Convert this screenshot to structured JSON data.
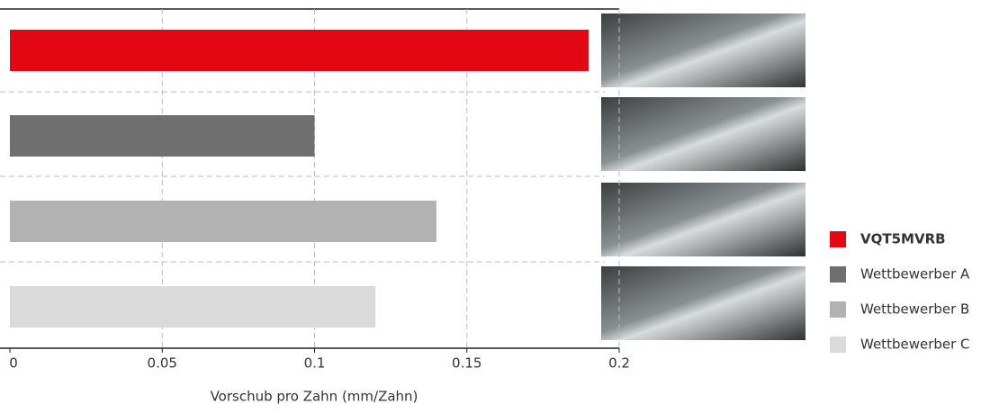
{
  "chart_data": {
    "type": "bar",
    "orientation": "horizontal",
    "x_label": "Vorschub pro Zahn (mm/Zahn)",
    "series": [
      {
        "name": "VQT5MVRB",
        "color": "#e30613",
        "values": [
          0.19
        ]
      },
      {
        "name": "Wettbewerber A",
        "color": "#6f6f6f",
        "values": [
          0.1
        ]
      },
      {
        "name": "Wettbewerber B",
        "color": "#b2b2b2",
        "values": [
          0.14
        ]
      },
      {
        "name": "Wettbewerber C",
        "color": "#dadada",
        "values": [
          0.12
        ]
      }
    ],
    "xlim": [
      0,
      0.2
    ],
    "xticks": [
      0,
      0.05,
      0.1,
      0.15,
      0.2
    ],
    "grid": true
  }
}
